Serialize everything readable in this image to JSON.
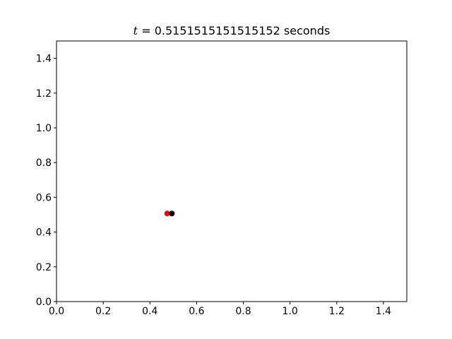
{
  "chart_data": {
    "type": "scatter",
    "title": {
      "var": "t",
      "eq": " = ",
      "value": "0.5151515151515152",
      "unit": " seconds"
    },
    "xlabel": "",
    "ylabel": "",
    "xlim": [
      0,
      1.5
    ],
    "ylim": [
      0,
      1.5
    ],
    "x_ticks": [
      "0.0",
      "0.2",
      "0.4",
      "0.6",
      "0.8",
      "1.0",
      "1.2",
      "1.4"
    ],
    "y_ticks": [
      "0.0",
      "0.2",
      "0.4",
      "0.6",
      "0.8",
      "1.0",
      "1.2",
      "1.4"
    ],
    "grid": false,
    "points": [
      {
        "x": 0.474,
        "y": 0.507,
        "color": "#ff0000"
      },
      {
        "x": 0.494,
        "y": 0.507,
        "color": "#000000"
      }
    ]
  }
}
